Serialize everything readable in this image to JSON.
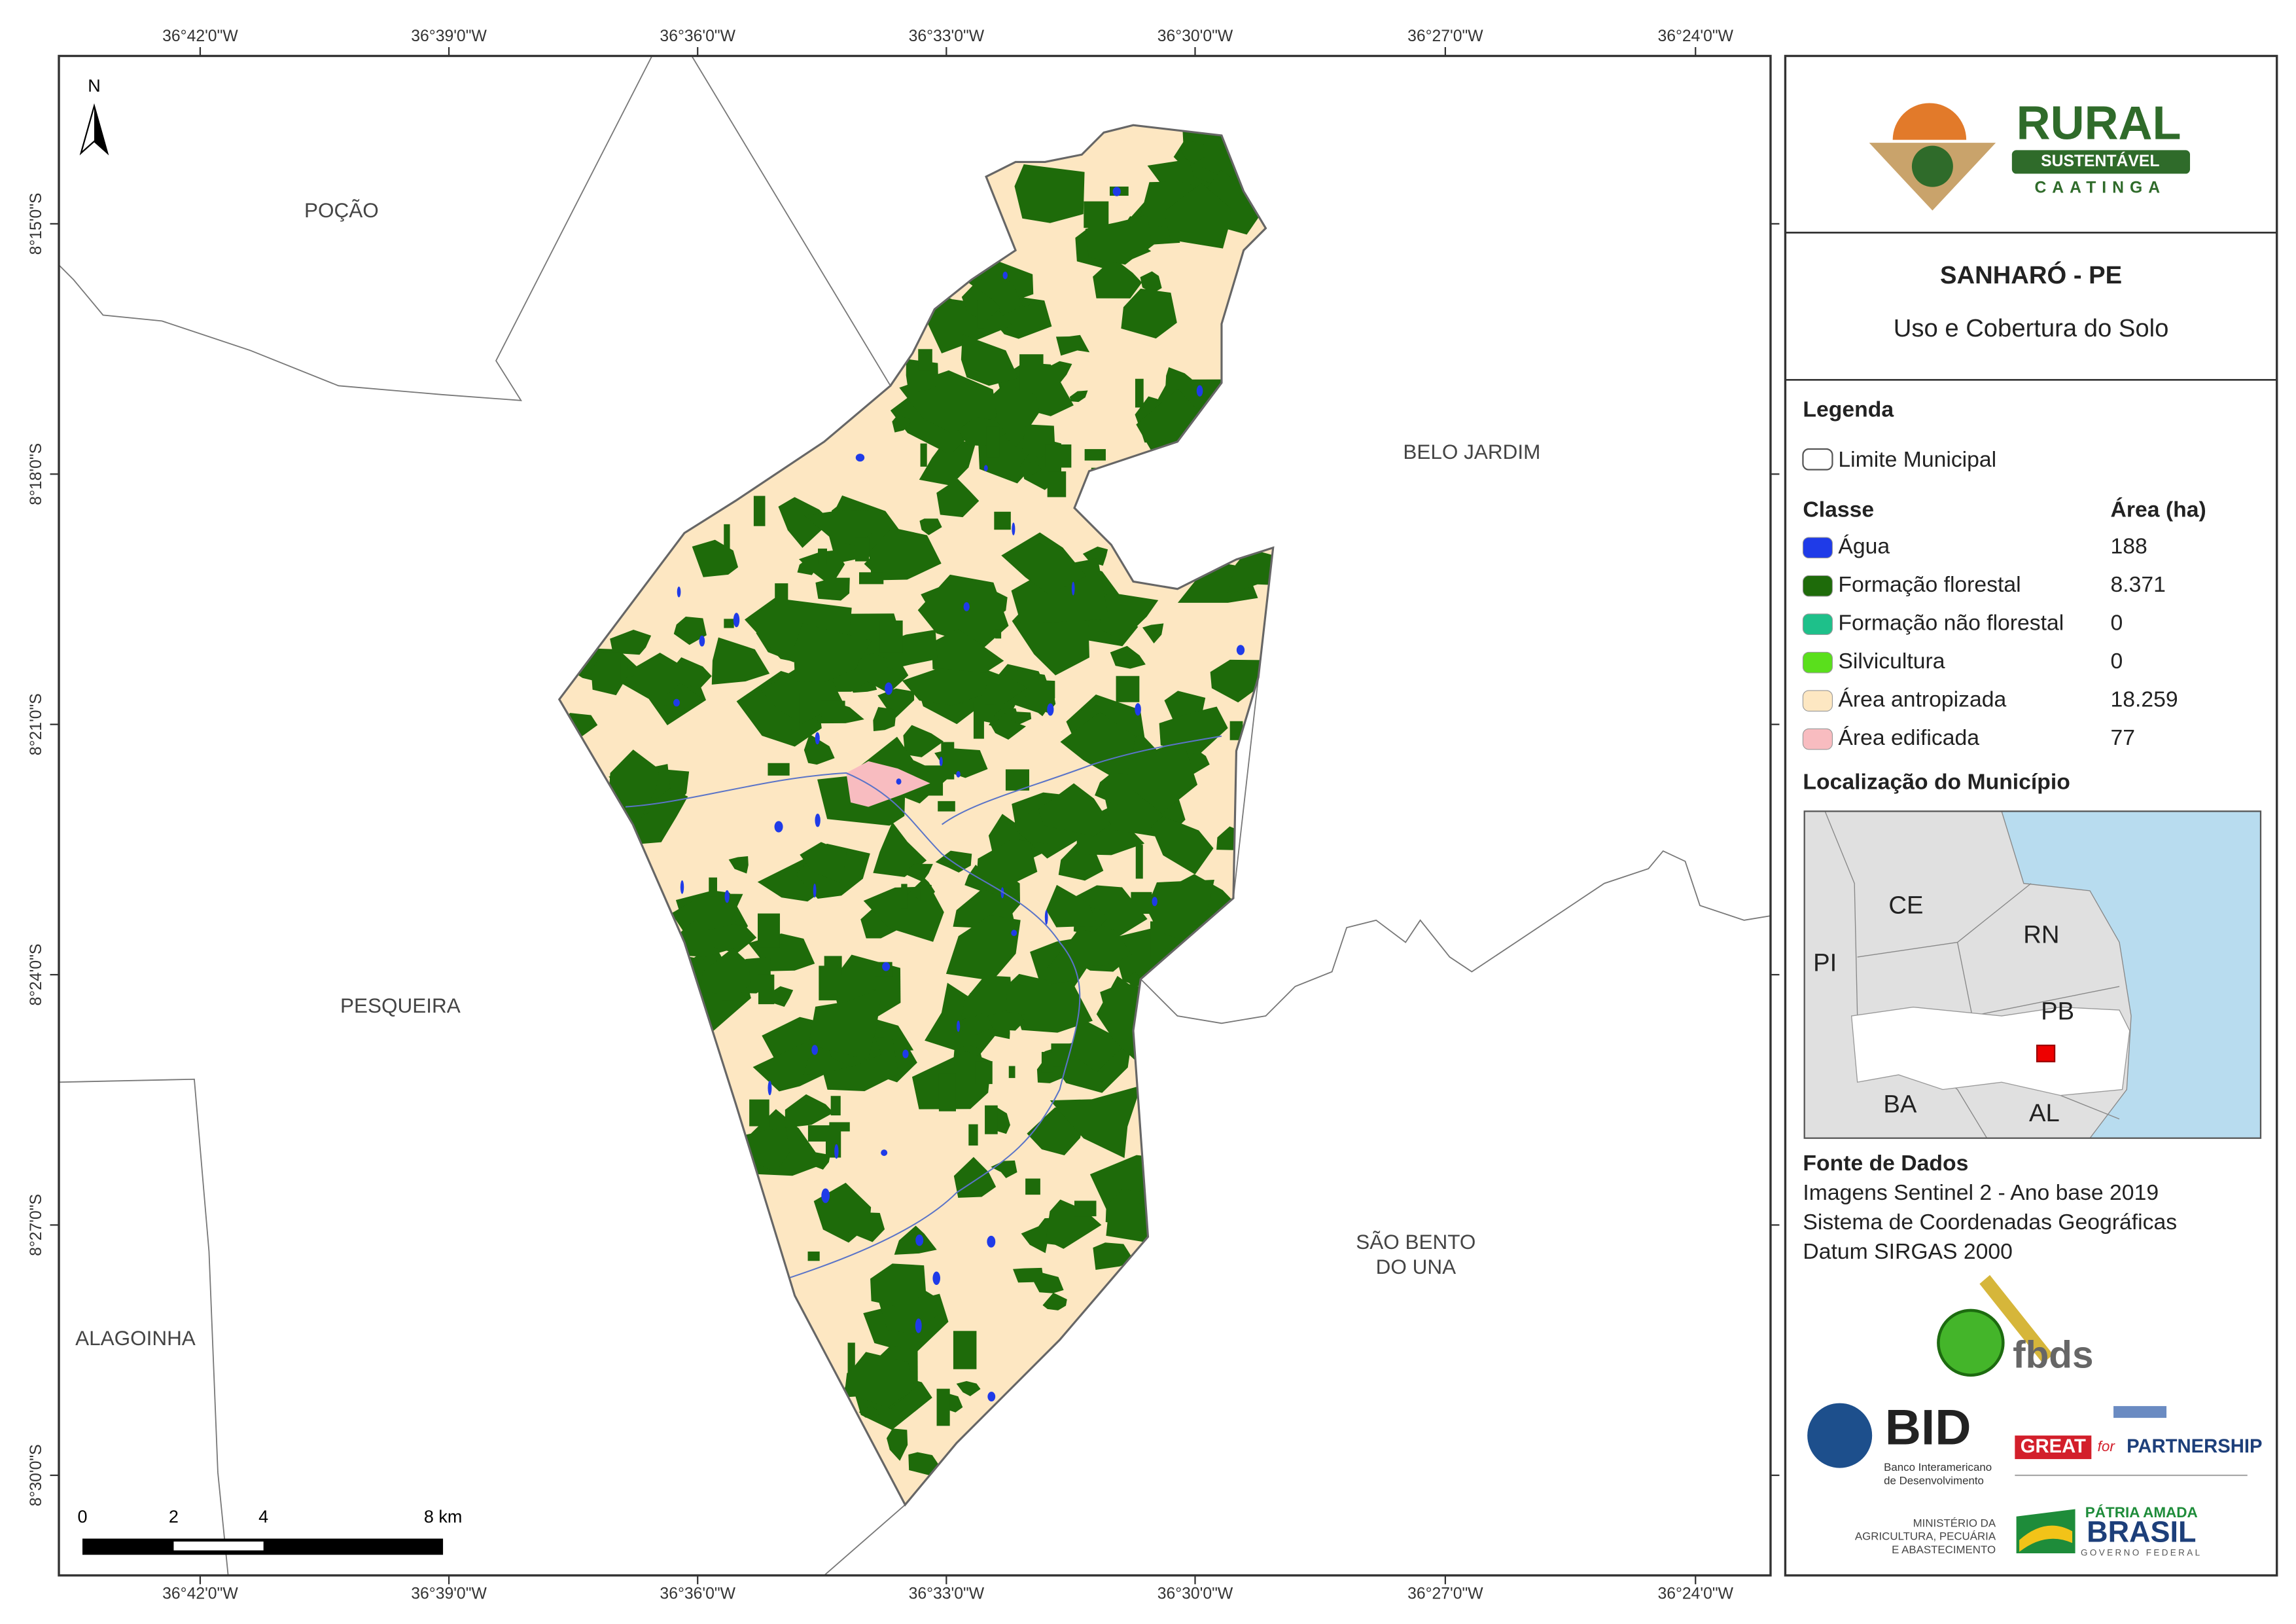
{
  "map": {
    "top_coords": [
      "36°42'0\"W",
      "36°39'0\"W",
      "36°36'0\"W",
      "36°33'0\"W",
      "36°30'0\"W",
      "36°27'0\"W",
      "36°24'0\"W"
    ],
    "bottom_coords": [
      "36°42'0\"W",
      "36°39'0\"W",
      "36°36'0\"W",
      "36°33'0\"W",
      "36°30'0\"W",
      "36°27'0\"W",
      "36°24'0\"W"
    ],
    "left_coords": [
      "8°15'0\"S",
      "8°18'0\"S",
      "8°21'0\"S",
      "8°24'0\"S",
      "8°27'0\"S",
      "8°30'0\"S"
    ],
    "north": "N",
    "places": [
      [
        "POÇÃO"
      ],
      [
        "BELO JARDIM"
      ],
      [
        "PESQUEIRA"
      ],
      [
        "SÃO BENTO",
        "DO UNA"
      ],
      [
        "ALAGOINHA"
      ]
    ],
    "scale_labels": [
      "0",
      "2",
      "4",
      "8 km"
    ]
  },
  "panel": {
    "logo": {
      "word": "RURAL",
      "band": "SUSTENTÁVEL",
      "sub": "CAATINGA"
    },
    "title": "SANHARÓ - PE",
    "subtitle": "Uso e Cobertura do Solo",
    "legend_title": "Legenda",
    "boundary": "Limite Municipal",
    "class_header": "Classe",
    "area_header": "Área (ha)",
    "classes": [
      {
        "name": "Água",
        "color": "#1f3be8",
        "area": "188"
      },
      {
        "name": "Formação florestal",
        "color": "#1e6b0a",
        "area": "8.371"
      },
      {
        "name": "Formação não florestal",
        "color": "#1ec08a",
        "area": "0"
      },
      {
        "name": "Silvicultura",
        "color": "#5adf1c",
        "area": "0"
      },
      {
        "name": "Área antropizada",
        "color": "#fde7c2",
        "area": "18.259"
      },
      {
        "name": "Área edificada",
        "color": "#f8bcc0",
        "area": "77"
      }
    ],
    "location_title": "Localização do Município",
    "locator_labels": [
      "CE",
      "RN",
      "PI",
      "PB",
      "BA",
      "AL"
    ],
    "source_title": "Fonte de Dados",
    "source_lines": [
      "Imagens Sentinel 2 - Ano base 2019",
      "Sistema de Coordenadas Geográficas",
      "Datum SIRGAS 2000"
    ],
    "fbds": "fbds",
    "bid": {
      "word": "BID",
      "lines": [
        "Banco Interamericano",
        "de Desenvolvimento"
      ]
    },
    "great": {
      "a": "GREAT",
      "b": "for",
      "c": "PARTNERSHIP"
    },
    "ministry": [
      "MINISTÉRIO DA",
      "AGRICULTURA, PECUÁRIA",
      "E ABASTECIMENTO"
    ],
    "brasil": {
      "top": "PÁTRIA AMADA",
      "word": "BRASIL",
      "sub": "GOVERNO FEDERAL"
    }
  }
}
